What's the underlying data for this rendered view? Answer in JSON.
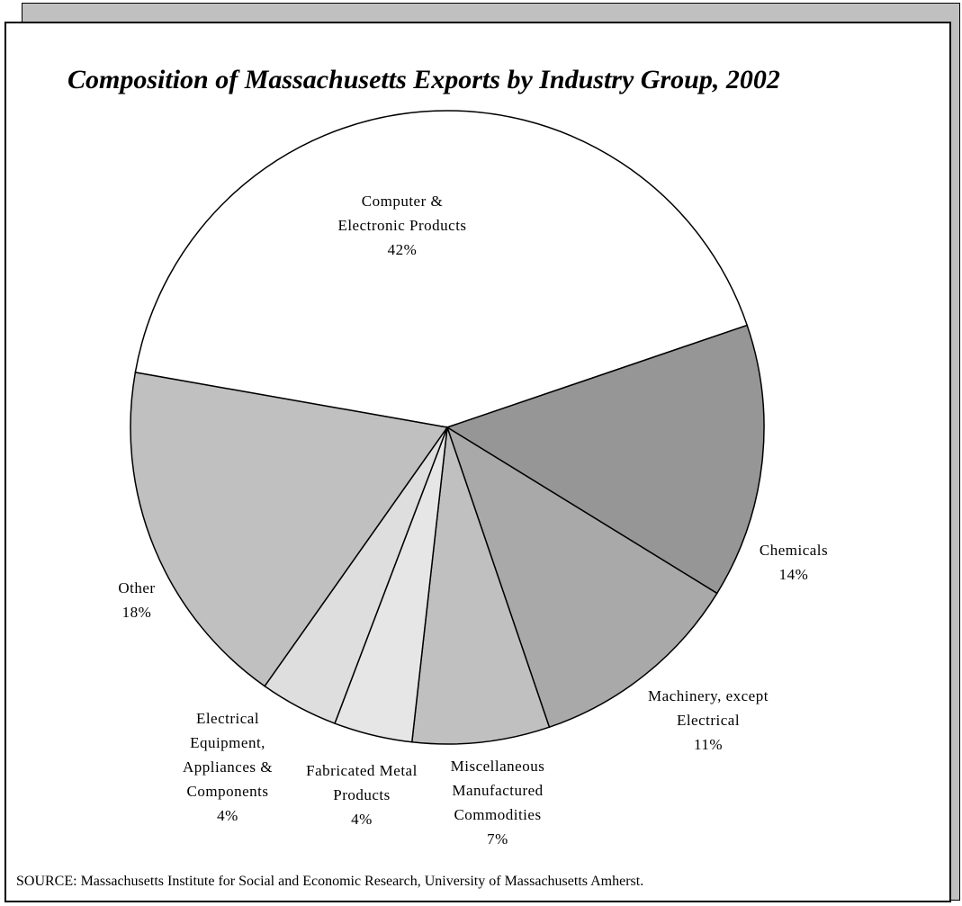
{
  "chart_data": {
    "type": "pie",
    "title": "Composition of Massachusetts Exports by Industry Group, 2002",
    "source": "SOURCE: Massachusetts Institute for Social and Economic Research, University of Massachusetts Amherst.",
    "categories": [
      "Computer & Electronic Products",
      "Chemicals",
      "Machinery, except Electrical",
      "Miscellaneous Manufactured Commodities",
      "Fabricated Metal Products",
      "Electrical Equipment, Appliances & Components",
      "Other"
    ],
    "values": [
      42,
      14,
      11,
      7,
      4,
      4,
      18
    ],
    "value_labels": [
      "42%",
      "14%",
      "11%",
      "7%",
      "4%",
      "4%",
      "18%"
    ],
    "colors": [
      "#ffffff",
      "#969696",
      "#a9a9a9",
      "#c0c0c0",
      "#e6e6e6",
      "#dedede",
      "#c0c0c0"
    ]
  }
}
